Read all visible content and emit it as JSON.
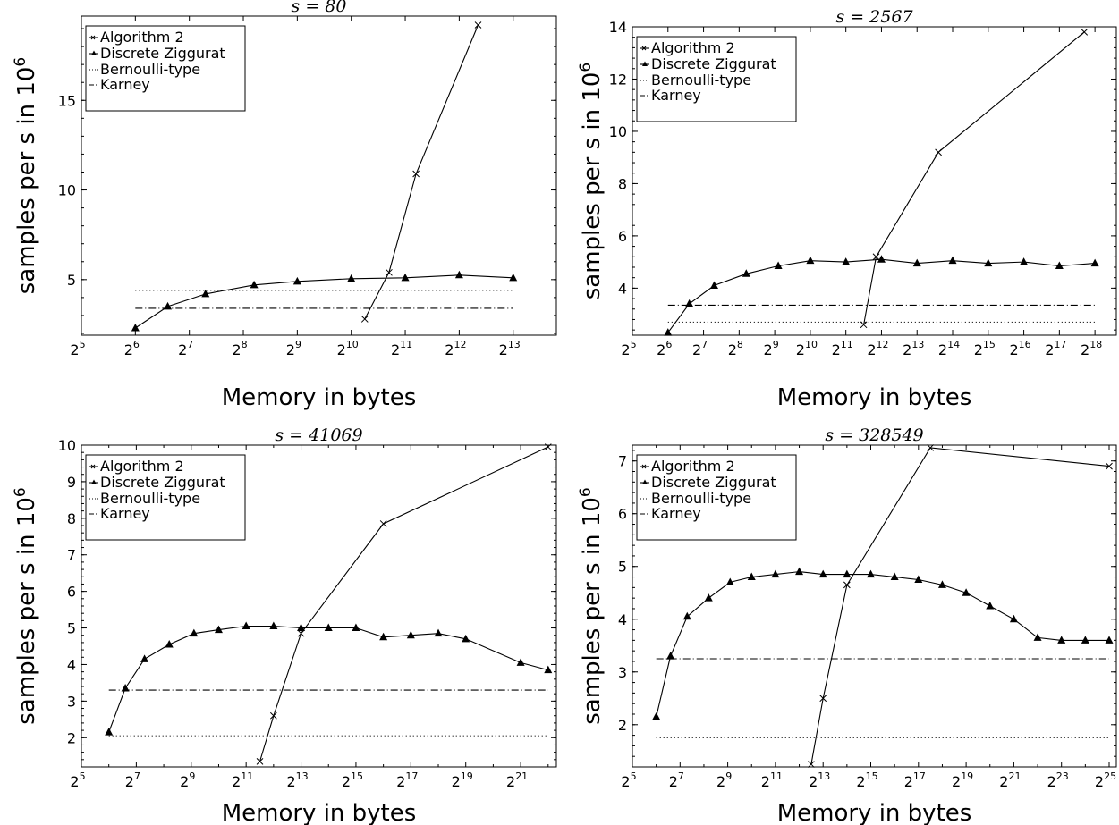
{
  "figure": {
    "common": {
      "xlabel": "Memory in bytes",
      "ylabel_prefix": "samples per s in 10",
      "ylabel_sup": "6",
      "legend": [
        "Algorithm 2",
        "Discrete Ziggurat",
        "Bernoulli-type",
        "Karney"
      ]
    }
  },
  "chart_data": [
    {
      "type": "line",
      "title": "s = 80",
      "xlabel": "Memory in bytes",
      "ylabel": "samples per s in 10^6",
      "x_scale": "log2",
      "xlim_log2": [
        5,
        13.8
      ],
      "ylim": [
        1.9,
        19.7
      ],
      "x_ticks_log2": [
        5,
        6,
        7,
        8,
        9,
        10,
        11,
        12,
        13
      ],
      "y_ticks": [
        5,
        10,
        15
      ],
      "legend_position": "top-left",
      "series": [
        {
          "name": "Algorithm 2",
          "marker": "x",
          "style": "solid",
          "x_log2": [
            10.25,
            10.7,
            11.2,
            12.35
          ],
          "y": [
            2.8,
            5.4,
            10.9,
            19.2
          ]
        },
        {
          "name": "Discrete Ziggurat",
          "marker": "triangle",
          "style": "solid",
          "x_log2": [
            6.0,
            6.6,
            7.3,
            8.2,
            9.0,
            10.0,
            11.0,
            12.0,
            13.0
          ],
          "y": [
            2.3,
            3.5,
            4.2,
            4.7,
            4.9,
            5.05,
            5.1,
            5.25,
            5.1
          ]
        },
        {
          "name": "Bernoulli-type",
          "style": "dotted",
          "x_log2": [
            6.0,
            13.0
          ],
          "y": [
            4.4,
            4.4
          ]
        },
        {
          "name": "Karney",
          "style": "dashdot",
          "x_log2": [
            6.0,
            13.0
          ],
          "y": [
            3.4,
            3.4
          ]
        }
      ]
    },
    {
      "type": "line",
      "title": "s = 2567",
      "xlabel": "Memory in bytes",
      "ylabel": "samples per s in 10^6",
      "x_scale": "log2",
      "xlim_log2": [
        5,
        18.6
      ],
      "ylim": [
        2.2,
        14
      ],
      "x_ticks_log2": [
        5,
        6,
        7,
        8,
        9,
        10,
        11,
        12,
        13,
        14,
        15,
        16,
        17,
        18
      ],
      "y_ticks": [
        4,
        6,
        8,
        10,
        12,
        14
      ],
      "legend_position": "top-left",
      "series": [
        {
          "name": "Algorithm 2",
          "marker": "x",
          "style": "solid",
          "x_log2": [
            11.5,
            11.85,
            13.6,
            17.7
          ],
          "y": [
            2.6,
            5.2,
            9.2,
            13.8
          ]
        },
        {
          "name": "Discrete Ziggurat",
          "marker": "triangle",
          "style": "solid",
          "x_log2": [
            6.0,
            6.6,
            7.3,
            8.2,
            9.1,
            10.0,
            11.0,
            12.0,
            13.0,
            14.0,
            15.0,
            16.0,
            17.0,
            18.0
          ],
          "y": [
            2.3,
            3.4,
            4.1,
            4.55,
            4.85,
            5.05,
            5.0,
            5.1,
            4.95,
            5.05,
            4.95,
            5.0,
            4.85,
            4.95
          ]
        },
        {
          "name": "Bernoulli-type",
          "style": "dotted",
          "x_log2": [
            6.0,
            18.0
          ],
          "y": [
            2.7,
            2.7
          ]
        },
        {
          "name": "Karney",
          "style": "dashdot",
          "x_log2": [
            6.0,
            18.0
          ],
          "y": [
            3.35,
            3.35
          ]
        }
      ]
    },
    {
      "type": "line",
      "title": "s = 41069",
      "xlabel": "Memory in bytes",
      "ylabel": "samples per s in 10^6",
      "x_scale": "log2",
      "xlim_log2": [
        5,
        22.3
      ],
      "ylim": [
        1.2,
        10
      ],
      "x_ticks_log2": [
        5,
        7,
        9,
        11,
        13,
        15,
        17,
        19,
        21
      ],
      "y_ticks": [
        2,
        3,
        4,
        5,
        6,
        7,
        8,
        9,
        10
      ],
      "legend_position": "top-left",
      "series": [
        {
          "name": "Algorithm 2",
          "marker": "x",
          "style": "solid",
          "x_log2": [
            11.5,
            12.0,
            13.0,
            16.0,
            22.0
          ],
          "y": [
            1.35,
            2.6,
            4.85,
            7.85,
            9.95
          ]
        },
        {
          "name": "Discrete Ziggurat",
          "marker": "triangle",
          "style": "solid",
          "x_log2": [
            6.0,
            6.6,
            7.3,
            8.2,
            9.1,
            10.0,
            11.0,
            12.0,
            13.0,
            14.0,
            15.0,
            16.0,
            17.0,
            18.0,
            19.0,
            21.0,
            22.0
          ],
          "y": [
            2.15,
            3.35,
            4.15,
            4.55,
            4.85,
            4.95,
            5.05,
            5.05,
            5.0,
            5.0,
            5.0,
            4.75,
            4.8,
            4.85,
            4.7,
            4.05,
            3.85
          ]
        },
        {
          "name": "Bernoulli-type",
          "style": "dotted",
          "x_log2": [
            6.0,
            22.0
          ],
          "y": [
            2.05,
            2.05
          ]
        },
        {
          "name": "Karney",
          "style": "dashdot",
          "x_log2": [
            6.0,
            22.0
          ],
          "y": [
            3.3,
            3.3
          ]
        }
      ]
    },
    {
      "type": "line",
      "title": "s = 328549",
      "xlabel": "Memory in bytes",
      "ylabel": "samples per s in 10^6",
      "x_scale": "log2",
      "xlim_log2": [
        5,
        25.3
      ],
      "ylim": [
        1.2,
        7.3
      ],
      "x_ticks_log2": [
        5,
        7,
        9,
        11,
        13,
        15,
        17,
        19,
        21,
        23,
        25
      ],
      "y_ticks": [
        2,
        3,
        4,
        5,
        6,
        7
      ],
      "legend_position": "top-left",
      "series": [
        {
          "name": "Algorithm 2",
          "marker": "x",
          "style": "solid",
          "x_log2": [
            12.5,
            13.0,
            14.0,
            17.5,
            25.0
          ],
          "y": [
            1.25,
            2.5,
            4.65,
            7.25,
            6.9
          ]
        },
        {
          "name": "Discrete Ziggurat",
          "marker": "triangle",
          "style": "solid",
          "x_log2": [
            6.0,
            6.6,
            7.3,
            8.2,
            9.1,
            10.0,
            11.0,
            12.0,
            13.0,
            14.0,
            15.0,
            16.0,
            17.0,
            18.0,
            19.0,
            20.0,
            21.0,
            22.0,
            23.0,
            24.0,
            25.0
          ],
          "y": [
            2.15,
            3.3,
            4.05,
            4.4,
            4.7,
            4.8,
            4.85,
            4.9,
            4.85,
            4.85,
            4.85,
            4.8,
            4.75,
            4.65,
            4.5,
            4.25,
            4.0,
            3.65,
            3.6,
            3.6,
            3.6
          ]
        },
        {
          "name": "Bernoulli-type",
          "style": "dotted",
          "x_log2": [
            6.0,
            25.0
          ],
          "y": [
            1.75,
            1.75
          ]
        },
        {
          "name": "Karney",
          "style": "dashdot",
          "x_log2": [
            6.0,
            25.0
          ],
          "y": [
            3.25,
            3.25
          ]
        }
      ]
    }
  ]
}
